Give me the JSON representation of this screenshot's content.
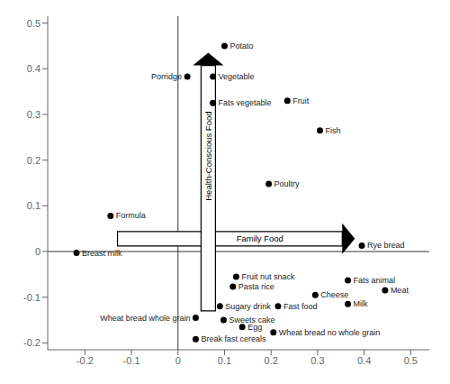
{
  "chart_data": {
    "type": "scatter",
    "labels": [
      "Potato",
      "Vegetable",
      "Porridge",
      "Fats vegetable",
      "Fruit",
      "Fish",
      "Poultry",
      "Formula",
      "Breast milk",
      "Rye bread",
      "Fruit nut snack",
      "Pasta rice",
      "Fats animal",
      "Cheese",
      "Meat",
      "Milk",
      "Sugary drink",
      "Fast food",
      "Wheat bread whole grain",
      "Sweets cake",
      "Egg",
      "Wheat bread no whole grain",
      "Break fast cereals"
    ],
    "x": [
      0.1,
      0.075,
      0.02,
      0.075,
      0.235,
      0.305,
      0.195,
      -0.145,
      -0.218,
      0.395,
      0.125,
      0.118,
      0.365,
      0.295,
      0.445,
      0.365,
      0.09,
      0.215,
      0.038,
      0.098,
      0.138,
      0.205,
      0.038
    ],
    "values": [
      0.45,
      0.383,
      0.383,
      0.325,
      0.33,
      0.265,
      0.148,
      0.078,
      -0.003,
      0.013,
      -0.055,
      -0.077,
      -0.063,
      -0.095,
      -0.085,
      -0.115,
      -0.12,
      -0.12,
      -0.145,
      -0.15,
      -0.165,
      -0.177,
      -0.192
    ],
    "color": "#000000",
    "xlim": [
      -0.28,
      0.54
    ],
    "ylim": [
      -0.215,
      0.515
    ],
    "xticks": [
      -0.2,
      -0.1,
      0,
      0.1,
      0.2,
      0.3,
      0.4,
      0.5
    ],
    "yticks": [
      -0.2,
      -0.1,
      0,
      0.1,
      0.2,
      0.3,
      0.4,
      0.5
    ],
    "grid": false,
    "annotations": [
      {
        "text": "Family Food",
        "x": [
          -0.13,
          0.38
        ],
        "y": [
          0.028,
          0.028
        ]
      },
      {
        "text": "Health-Conscious Food",
        "x": [
          0.065,
          0.065
        ],
        "y": [
          -0.13,
          0.435
        ]
      }
    ]
  }
}
